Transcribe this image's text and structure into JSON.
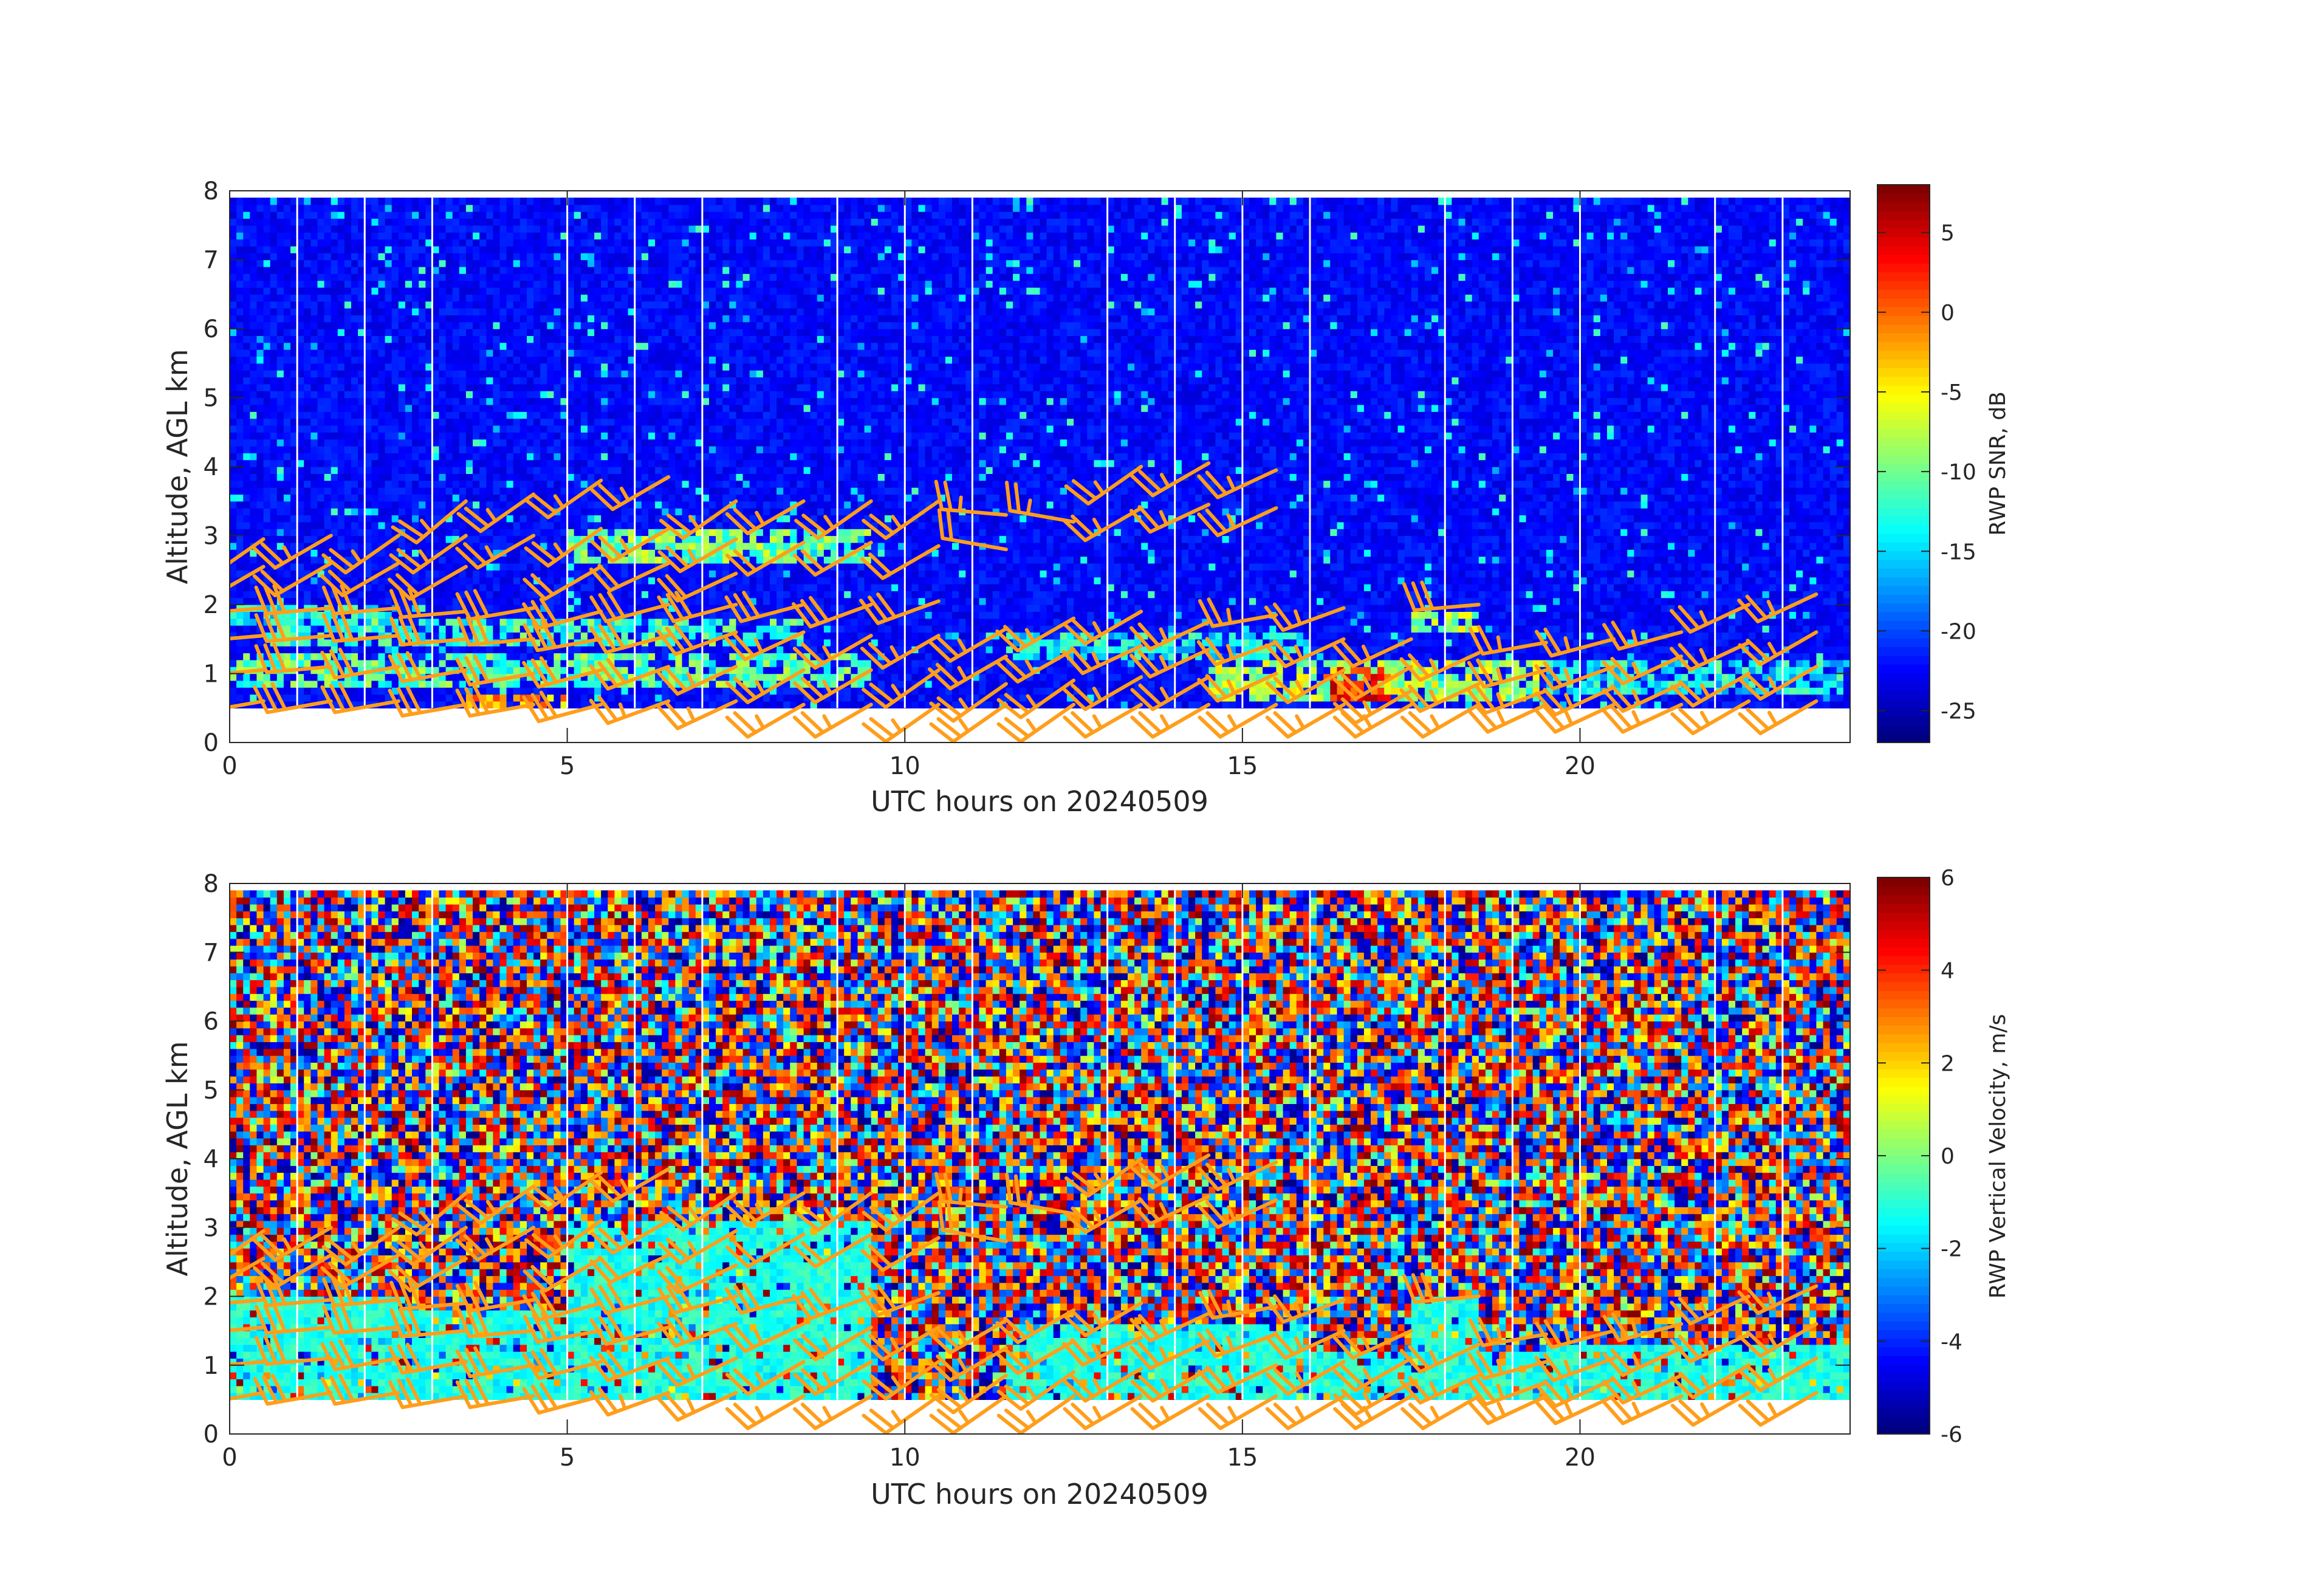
{
  "chart_data": [
    {
      "type": "heatmap",
      "title": "",
      "xlabel": "UTC hours on 20240509",
      "ylabel": "Altitude, AGL km",
      "xlim": [
        0,
        24
      ],
      "ylim": [
        0,
        8
      ],
      "xticks": [
        0,
        5,
        10,
        15,
        20
      ],
      "yticks": [
        0,
        1,
        2,
        3,
        4,
        5,
        6,
        7,
        8
      ],
      "colorbar": {
        "label": "RWP SNR, dB",
        "range": [
          -27,
          8
        ],
        "ticks": [
          5,
          0,
          -5,
          -10,
          -15,
          -20,
          -25
        ],
        "colormap": "jet"
      },
      "data_altitude_range_km": [
        0.5,
        7.9
      ],
      "data_gap_times_h": [
        1.0,
        2.0,
        3.0,
        5.0,
        6.0,
        7.0,
        9.0,
        10.0,
        11.0,
        13.0,
        14.0,
        15.0,
        16.0,
        18.0,
        19.0,
        20.0,
        22.0,
        23.0
      ],
      "layers": [
        {
          "t0": 0.0,
          "t1": 2.5,
          "alt": 1.85,
          "depth": 0.25,
          "snr": -14
        },
        {
          "t0": 0.5,
          "t1": 8.5,
          "alt": 1.6,
          "depth": 0.35,
          "snr": -12
        },
        {
          "t0": 0.0,
          "t1": 9.5,
          "alt": 1.05,
          "depth": 0.55,
          "snr": -11
        },
        {
          "t0": 3.5,
          "t1": 5.0,
          "alt": 0.6,
          "depth": 0.2,
          "snr": -2
        },
        {
          "t0": 5.0,
          "t1": 9.5,
          "alt": 2.85,
          "depth": 0.5,
          "snr": -10
        },
        {
          "t0": 11.5,
          "t1": 16.0,
          "alt": 1.4,
          "depth": 0.35,
          "snr": -14
        },
        {
          "t0": 14.5,
          "t1": 19.5,
          "alt": 0.9,
          "depth": 0.6,
          "snr": -8
        },
        {
          "t0": 16.2,
          "t1": 17.2,
          "alt": 0.85,
          "depth": 0.5,
          "snr": 3
        },
        {
          "t0": 19.5,
          "t1": 24.0,
          "alt": 1.0,
          "depth": 0.5,
          "snr": -14
        },
        {
          "t0": 17.5,
          "t1": 18.5,
          "alt": 1.8,
          "depth": 0.3,
          "snr": -8
        }
      ],
      "wind_barbs": [
        {
          "t": 0.5,
          "alt": 2.95,
          "dir": 235,
          "kt": 25
        },
        {
          "t": 0.5,
          "alt": 2.55,
          "dir": 240,
          "kt": 20
        },
        {
          "t": 1.5,
          "alt": 3.0,
          "dir": 240,
          "kt": 25
        },
        {
          "t": 1.5,
          "alt": 2.6,
          "dir": 240,
          "kt": 20
        },
        {
          "t": 2.5,
          "alt": 3.0,
          "dir": 235,
          "kt": 25
        },
        {
          "t": 2.5,
          "alt": 2.6,
          "dir": 240,
          "kt": 20
        },
        {
          "t": 3.5,
          "alt": 3.5,
          "dir": 230,
          "kt": 25
        },
        {
          "t": 3.5,
          "alt": 3.0,
          "dir": 235,
          "kt": 25
        },
        {
          "t": 3.5,
          "alt": 2.55,
          "dir": 240,
          "kt": 20
        },
        {
          "t": 4.5,
          "alt": 3.6,
          "dir": 235,
          "kt": 25
        },
        {
          "t": 4.5,
          "alt": 3.0,
          "dir": 240,
          "kt": 25
        },
        {
          "t": 5.5,
          "alt": 3.8,
          "dir": 235,
          "kt": 25
        },
        {
          "t": 5.5,
          "alt": 3.1,
          "dir": 235,
          "kt": 25
        },
        {
          "t": 5.5,
          "alt": 2.55,
          "dir": 240,
          "kt": 20
        },
        {
          "t": 6.5,
          "alt": 3.85,
          "dir": 240,
          "kt": 25
        },
        {
          "t": 6.5,
          "alt": 3.1,
          "dir": 240,
          "kt": 25
        },
        {
          "t": 6.5,
          "alt": 2.6,
          "dir": 245,
          "kt": 20
        },
        {
          "t": 7.5,
          "alt": 3.5,
          "dir": 235,
          "kt": 25
        },
        {
          "t": 7.5,
          "alt": 2.95,
          "dir": 240,
          "kt": 25
        },
        {
          "t": 7.5,
          "alt": 2.45,
          "dir": 245,
          "kt": 20
        },
        {
          "t": 8.5,
          "alt": 3.5,
          "dir": 240,
          "kt": 25
        },
        {
          "t": 8.5,
          "alt": 2.9,
          "dir": 240,
          "kt": 20
        },
        {
          "t": 9.5,
          "alt": 3.5,
          "dir": 235,
          "kt": 25
        },
        {
          "t": 9.5,
          "alt": 2.9,
          "dir": 240,
          "kt": 20
        },
        {
          "t": 10.5,
          "alt": 3.5,
          "dir": 235,
          "kt": 25
        },
        {
          "t": 10.5,
          "alt": 2.85,
          "dir": 240,
          "kt": 20
        },
        {
          "t": 11.5,
          "alt": 3.3,
          "dir": 275,
          "kt": 25
        },
        {
          "t": 11.5,
          "alt": 2.8,
          "dir": 280,
          "kt": 20
        },
        {
          "t": 12.5,
          "alt": 3.2,
          "dir": 280,
          "kt": 25
        },
        {
          "t": 13.5,
          "alt": 4.0,
          "dir": 235,
          "kt": 25
        },
        {
          "t": 13.5,
          "alt": 3.4,
          "dir": 240,
          "kt": 25
        },
        {
          "t": 14.5,
          "alt": 4.05,
          "dir": 240,
          "kt": 25
        },
        {
          "t": 14.5,
          "alt": 3.45,
          "dir": 245,
          "kt": 25
        },
        {
          "t": 15.5,
          "alt": 3.95,
          "dir": 245,
          "kt": 25
        },
        {
          "t": 15.5,
          "alt": 3.4,
          "dir": 245,
          "kt": 25
        },
        {
          "t": 0.5,
          "alt": 1.95,
          "dir": 265,
          "kt": 30
        },
        {
          "t": 1.5,
          "alt": 1.95,
          "dir": 265,
          "kt": 30
        },
        {
          "t": 2.5,
          "alt": 1.95,
          "dir": 265,
          "kt": 30
        },
        {
          "t": 3.5,
          "alt": 1.9,
          "dir": 265,
          "kt": 30
        },
        {
          "t": 4.5,
          "alt": 1.95,
          "dir": 260,
          "kt": 30
        },
        {
          "t": 5.5,
          "alt": 1.9,
          "dir": 255,
          "kt": 30
        },
        {
          "t": 6.5,
          "alt": 2.0,
          "dir": 255,
          "kt": 30
        },
        {
          "t": 7.5,
          "alt": 2.0,
          "dir": 255,
          "kt": 30
        },
        {
          "t": 8.5,
          "alt": 2.0,
          "dir": 255,
          "kt": 30
        },
        {
          "t": 9.5,
          "alt": 2.0,
          "dir": 250,
          "kt": 30
        },
        {
          "t": 10.5,
          "alt": 2.05,
          "dir": 250,
          "kt": 30
        },
        {
          "t": 11.5,
          "alt": 1.65,
          "dir": 240,
          "kt": 25
        },
        {
          "t": 12.5,
          "alt": 1.8,
          "dir": 240,
          "kt": 25
        },
        {
          "t": 13.5,
          "alt": 1.9,
          "dir": 240,
          "kt": 25
        },
        {
          "t": 14.5,
          "alt": 1.75,
          "dir": 245,
          "kt": 25
        },
        {
          "t": 15.5,
          "alt": 1.85,
          "dir": 260,
          "kt": 25
        },
        {
          "t": 16.5,
          "alt": 1.95,
          "dir": 250,
          "kt": 25
        },
        {
          "t": 17.5,
          "alt": 1.5,
          "dir": 245,
          "kt": 25
        },
        {
          "t": 18.5,
          "alt": 2.0,
          "dir": 265,
          "kt": 30
        },
        {
          "t": 19.5,
          "alt": 1.45,
          "dir": 260,
          "kt": 25
        },
        {
          "t": 20.5,
          "alt": 1.5,
          "dir": 255,
          "kt": 25
        },
        {
          "t": 21.5,
          "alt": 1.6,
          "dir": 255,
          "kt": 25
        },
        {
          "t": 22.5,
          "alt": 2.0,
          "dir": 245,
          "kt": 25
        },
        {
          "t": 23.5,
          "alt": 2.15,
          "dir": 245,
          "kt": 25
        },
        {
          "t": 0.5,
          "alt": 1.55,
          "dir": 265,
          "kt": 30
        },
        {
          "t": 1.5,
          "alt": 1.55,
          "dir": 265,
          "kt": 30
        },
        {
          "t": 2.5,
          "alt": 1.55,
          "dir": 265,
          "kt": 30
        },
        {
          "t": 3.5,
          "alt": 1.5,
          "dir": 265,
          "kt": 30
        },
        {
          "t": 4.5,
          "alt": 1.5,
          "dir": 265,
          "kt": 30
        },
        {
          "t": 5.5,
          "alt": 1.5,
          "dir": 260,
          "kt": 30
        },
        {
          "t": 6.5,
          "alt": 1.55,
          "dir": 255,
          "kt": 30
        },
        {
          "t": 7.5,
          "alt": 1.6,
          "dir": 250,
          "kt": 30
        },
        {
          "t": 8.5,
          "alt": 1.6,
          "dir": 245,
          "kt": 25
        },
        {
          "t": 9.5,
          "alt": 1.55,
          "dir": 240,
          "kt": 25
        },
        {
          "t": 10.5,
          "alt": 1.55,
          "dir": 240,
          "kt": 25
        },
        {
          "t": 11.5,
          "alt": 1.25,
          "dir": 240,
          "kt": 25
        },
        {
          "t": 12.5,
          "alt": 1.35,
          "dir": 240,
          "kt": 25
        },
        {
          "t": 13.5,
          "alt": 1.4,
          "dir": 245,
          "kt": 25
        },
        {
          "t": 14.5,
          "alt": 1.35,
          "dir": 245,
          "kt": 25
        },
        {
          "t": 15.5,
          "alt": 1.45,
          "dir": 250,
          "kt": 25
        },
        {
          "t": 16.5,
          "alt": 1.5,
          "dir": 245,
          "kt": 25
        },
        {
          "t": 17.5,
          "alt": 1.1,
          "dir": 240,
          "kt": 25
        },
        {
          "t": 18.5,
          "alt": 1.3,
          "dir": 245,
          "kt": 25
        },
        {
          "t": 19.5,
          "alt": 1.05,
          "dir": 255,
          "kt": 25
        },
        {
          "t": 20.5,
          "alt": 1.1,
          "dir": 250,
          "kt": 25
        },
        {
          "t": 21.5,
          "alt": 1.25,
          "dir": 245,
          "kt": 25
        },
        {
          "t": 22.5,
          "alt": 1.45,
          "dir": 245,
          "kt": 25
        },
        {
          "t": 23.5,
          "alt": 1.6,
          "dir": 240,
          "kt": 25
        },
        {
          "t": 0.5,
          "alt": 1.05,
          "dir": 265,
          "kt": 30
        },
        {
          "t": 1.5,
          "alt": 1.1,
          "dir": 265,
          "kt": 30
        },
        {
          "t": 2.5,
          "alt": 1.1,
          "dir": 260,
          "kt": 30
        },
        {
          "t": 3.5,
          "alt": 1.05,
          "dir": 260,
          "kt": 30
        },
        {
          "t": 4.5,
          "alt": 1.0,
          "dir": 260,
          "kt": 30
        },
        {
          "t": 5.5,
          "alt": 1.05,
          "dir": 255,
          "kt": 30
        },
        {
          "t": 6.5,
          "alt": 1.1,
          "dir": 250,
          "kt": 30
        },
        {
          "t": 7.5,
          "alt": 1.1,
          "dir": 245,
          "kt": 25
        },
        {
          "t": 8.5,
          "alt": 1.05,
          "dir": 240,
          "kt": 25
        },
        {
          "t": 9.5,
          "alt": 1.05,
          "dir": 240,
          "kt": 25
        },
        {
          "t": 10.5,
          "alt": 1.05,
          "dir": 235,
          "kt": 25
        },
        {
          "t": 11.5,
          "alt": 0.85,
          "dir": 235,
          "kt": 25
        },
        {
          "t": 12.5,
          "alt": 0.9,
          "dir": 235,
          "kt": 25
        },
        {
          "t": 13.5,
          "alt": 0.95,
          "dir": 240,
          "kt": 25
        },
        {
          "t": 14.5,
          "alt": 0.95,
          "dir": 240,
          "kt": 25
        },
        {
          "t": 15.5,
          "alt": 1.0,
          "dir": 245,
          "kt": 25
        },
        {
          "t": 16.5,
          "alt": 1.05,
          "dir": 240,
          "kt": 25
        },
        {
          "t": 17.5,
          "alt": 0.75,
          "dir": 240,
          "kt": 25
        },
        {
          "t": 18.5,
          "alt": 0.85,
          "dir": 245,
          "kt": 25
        },
        {
          "t": 19.5,
          "alt": 0.75,
          "dir": 250,
          "kt": 25
        },
        {
          "t": 20.5,
          "alt": 0.8,
          "dir": 245,
          "kt": 25
        },
        {
          "t": 21.5,
          "alt": 0.85,
          "dir": 245,
          "kt": 25
        },
        {
          "t": 22.5,
          "alt": 1.0,
          "dir": 240,
          "kt": 25
        },
        {
          "t": 23.5,
          "alt": 1.1,
          "dir": 240,
          "kt": 25
        },
        {
          "t": 0.5,
          "alt": 0.6,
          "dir": 260,
          "kt": 30
        },
        {
          "t": 1.5,
          "alt": 0.6,
          "dir": 260,
          "kt": 30
        },
        {
          "t": 2.5,
          "alt": 0.6,
          "dir": 260,
          "kt": 30
        },
        {
          "t": 3.5,
          "alt": 0.55,
          "dir": 260,
          "kt": 30
        },
        {
          "t": 4.5,
          "alt": 0.55,
          "dir": 260,
          "kt": 30
        },
        {
          "t": 5.5,
          "alt": 0.55,
          "dir": 255,
          "kt": 30
        },
        {
          "t": 6.5,
          "alt": 0.6,
          "dir": 250,
          "kt": 25
        },
        {
          "t": 7.5,
          "alt": 0.6,
          "dir": 245,
          "kt": 25
        },
        {
          "t": 8.5,
          "alt": 0.55,
          "dir": 240,
          "kt": 25
        },
        {
          "t": 9.5,
          "alt": 0.55,
          "dir": 240,
          "kt": 25
        },
        {
          "t": 10.5,
          "alt": 0.55,
          "dir": 235,
          "kt": 25
        },
        {
          "t": 11.5,
          "alt": 0.55,
          "dir": 235,
          "kt": 25
        },
        {
          "t": 12.5,
          "alt": 0.55,
          "dir": 235,
          "kt": 25
        },
        {
          "t": 13.5,
          "alt": 0.55,
          "dir": 240,
          "kt": 25
        },
        {
          "t": 14.5,
          "alt": 0.55,
          "dir": 240,
          "kt": 25
        },
        {
          "t": 15.5,
          "alt": 0.55,
          "dir": 240,
          "kt": 25
        },
        {
          "t": 16.5,
          "alt": 0.55,
          "dir": 240,
          "kt": 25
        },
        {
          "t": 17.5,
          "alt": 0.55,
          "dir": 240,
          "kt": 25
        },
        {
          "t": 18.5,
          "alt": 0.55,
          "dir": 240,
          "kt": 25
        },
        {
          "t": 19.5,
          "alt": 0.55,
          "dir": 245,
          "kt": 25
        },
        {
          "t": 20.5,
          "alt": 0.55,
          "dir": 245,
          "kt": 25
        },
        {
          "t": 21.5,
          "alt": 0.55,
          "dir": 245,
          "kt": 25
        },
        {
          "t": 22.5,
          "alt": 0.6,
          "dir": 240,
          "kt": 25
        },
        {
          "t": 23.5,
          "alt": 0.6,
          "dir": 240,
          "kt": 25
        }
      ],
      "barb_color": "#ff9e1b"
    },
    {
      "type": "heatmap",
      "title": "",
      "xlabel": "UTC hours on 20240509",
      "ylabel": "Altitude, AGL km",
      "xlim": [
        0,
        24
      ],
      "ylim": [
        0,
        8
      ],
      "xticks": [
        0,
        5,
        10,
        15,
        20
      ],
      "yticks": [
        0,
        1,
        2,
        3,
        4,
        5,
        6,
        7,
        8
      ],
      "colorbar": {
        "label": "RWP Vertical Velocity, m/s",
        "range": [
          -6,
          6
        ],
        "ticks": [
          6,
          4,
          2,
          0,
          -2,
          -4,
          -6
        ],
        "colormap": "jet"
      },
      "data_altitude_range_km": [
        0.5,
        7.9
      ],
      "signal_region_velocity_ms": [
        -1.5,
        -0.5
      ],
      "noise_region": "random +/- 6 m/s above signal layers",
      "barb_color": "#ff9e1b"
    }
  ]
}
